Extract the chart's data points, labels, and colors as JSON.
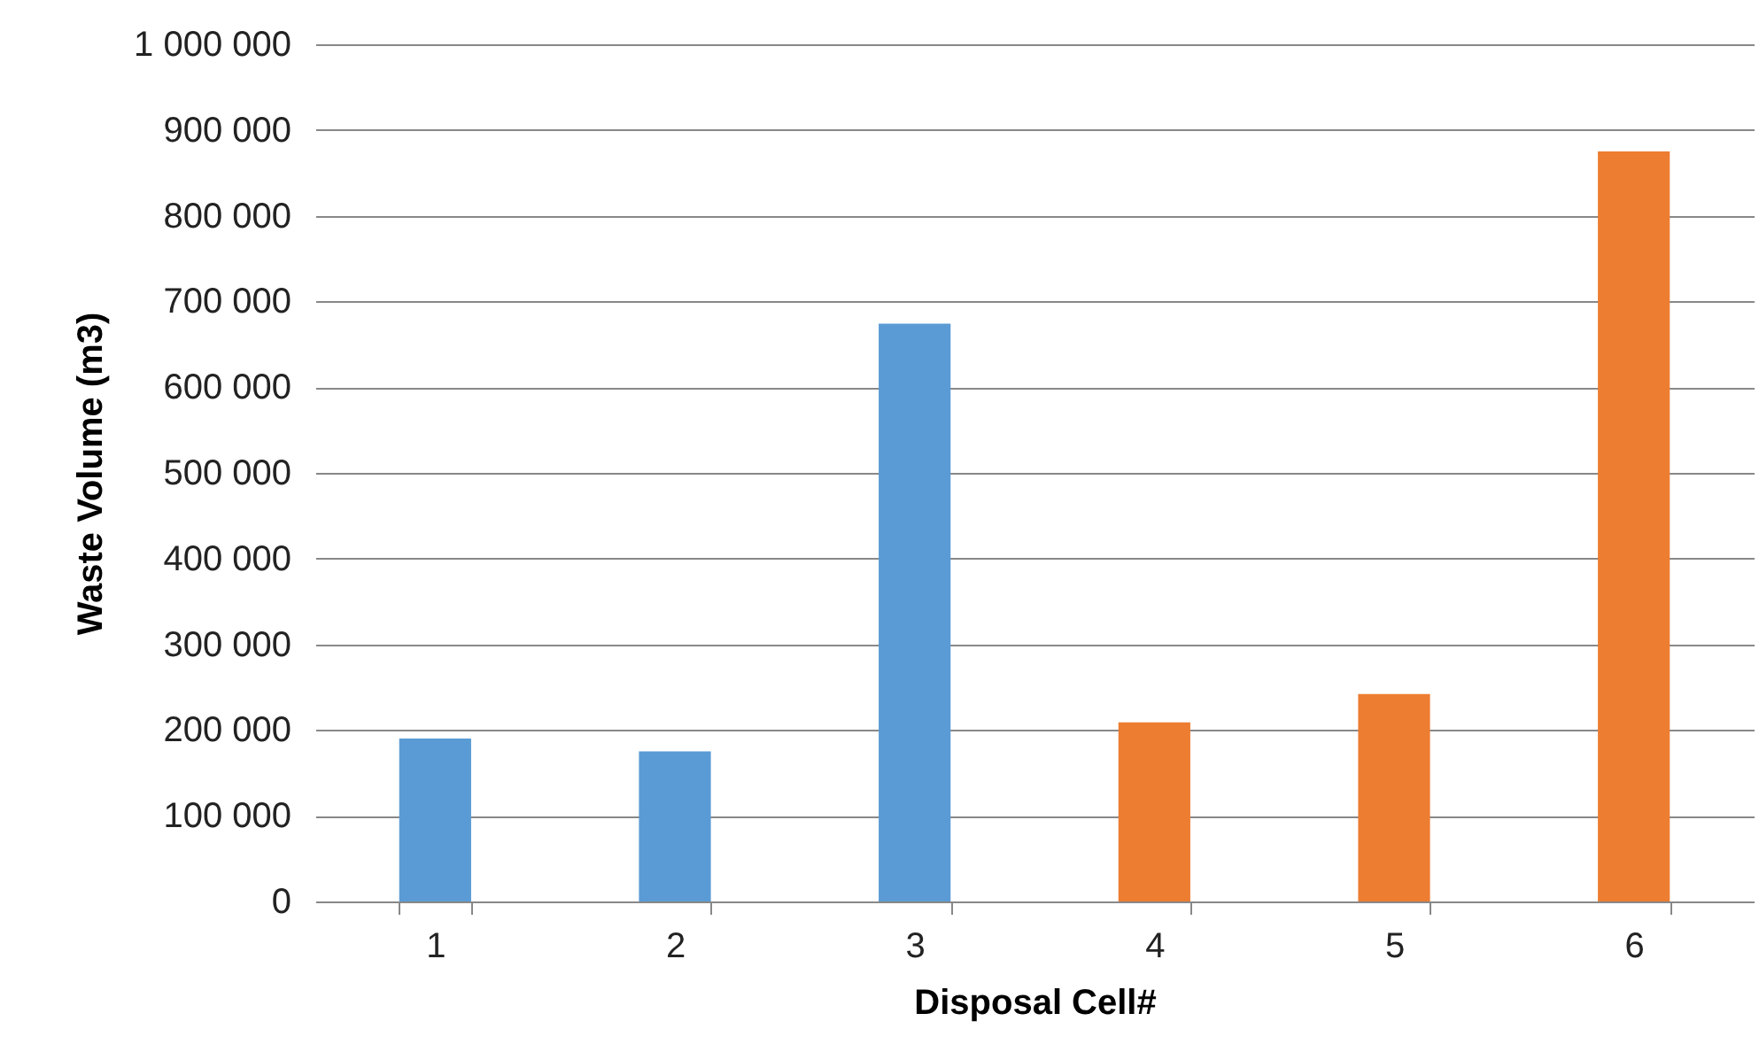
{
  "chart_data": {
    "type": "bar",
    "xlabel": "Disposal Cell#",
    "ylabel": "Waste Volume (m3)",
    "categories": [
      "1",
      "2",
      "3",
      "4",
      "5",
      "6"
    ],
    "values": [
      190000,
      175000,
      674000,
      209000,
      242000,
      875000
    ],
    "colors": [
      "#5b9bd5",
      "#5b9bd5",
      "#5b9bd5",
      "#ed7d31",
      "#ed7d31",
      "#ed7d31"
    ],
    "ylim": [
      0,
      1000000
    ],
    "yticks": [
      {
        "value": 0,
        "label": "0"
      },
      {
        "value": 100000,
        "label": "100 000"
      },
      {
        "value": 200000,
        "label": "200 000"
      },
      {
        "value": 300000,
        "label": "300 000"
      },
      {
        "value": 400000,
        "label": "400 000"
      },
      {
        "value": 500000,
        "label": "500 000"
      },
      {
        "value": 600000,
        "label": "600 000"
      },
      {
        "value": 700000,
        "label": "700 000"
      },
      {
        "value": 800000,
        "label": "800 000"
      },
      {
        "value": 900000,
        "label": "900 000"
      },
      {
        "value": 1000000,
        "label": "1 000 000"
      }
    ],
    "grid": "y"
  }
}
